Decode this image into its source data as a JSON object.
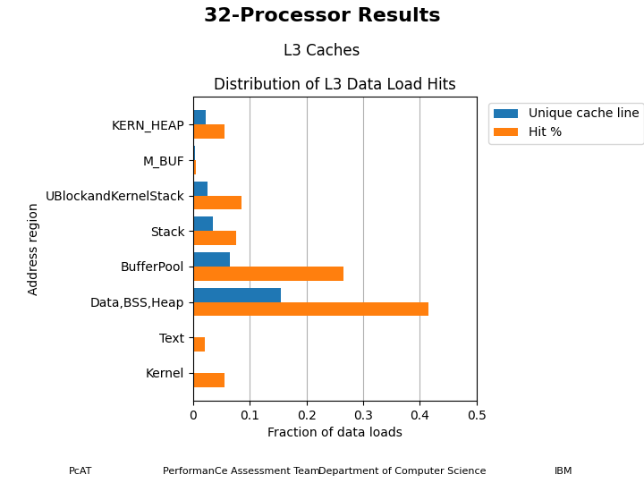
{
  "title": "32-Processor Results",
  "subtitle": "L3 Caches",
  "annotations": [
    "PcAT",
    "PerformanCe Assessment Team",
    "Department of Computer Science",
    "IBM"
  ],
  "chart_data": {
    "type": "bar",
    "orientation": "horizontal",
    "title": "Distribution of L3 Data Load Hits",
    "x_label": "Fraction of data loads",
    "y_label": "Address region",
    "categories": [
      "KERN_HEAP",
      "M_BUF",
      "UBlockandKernelStack",
      "Stack",
      "BufferPool",
      "Data,BSS,Heap",
      "Text",
      "Kernel"
    ],
    "series": [
      {
        "name": "Unique cache line",
        "values": [
          0.022,
          0.003,
          0.025,
          0.035,
          0.065,
          0.155,
          0.0,
          0.0
        ]
      },
      {
        "name": "Hit %",
        "values": [
          0.055,
          0.005,
          0.085,
          0.075,
          0.265,
          0.415,
          0.02,
          0.055
        ]
      }
    ],
    "xlim": [
      0,
      0.5
    ],
    "xticks": [
      0,
      0.1,
      0.2,
      0.3,
      0.4,
      0.5
    ],
    "grid": true,
    "legend": "upper left"
  }
}
